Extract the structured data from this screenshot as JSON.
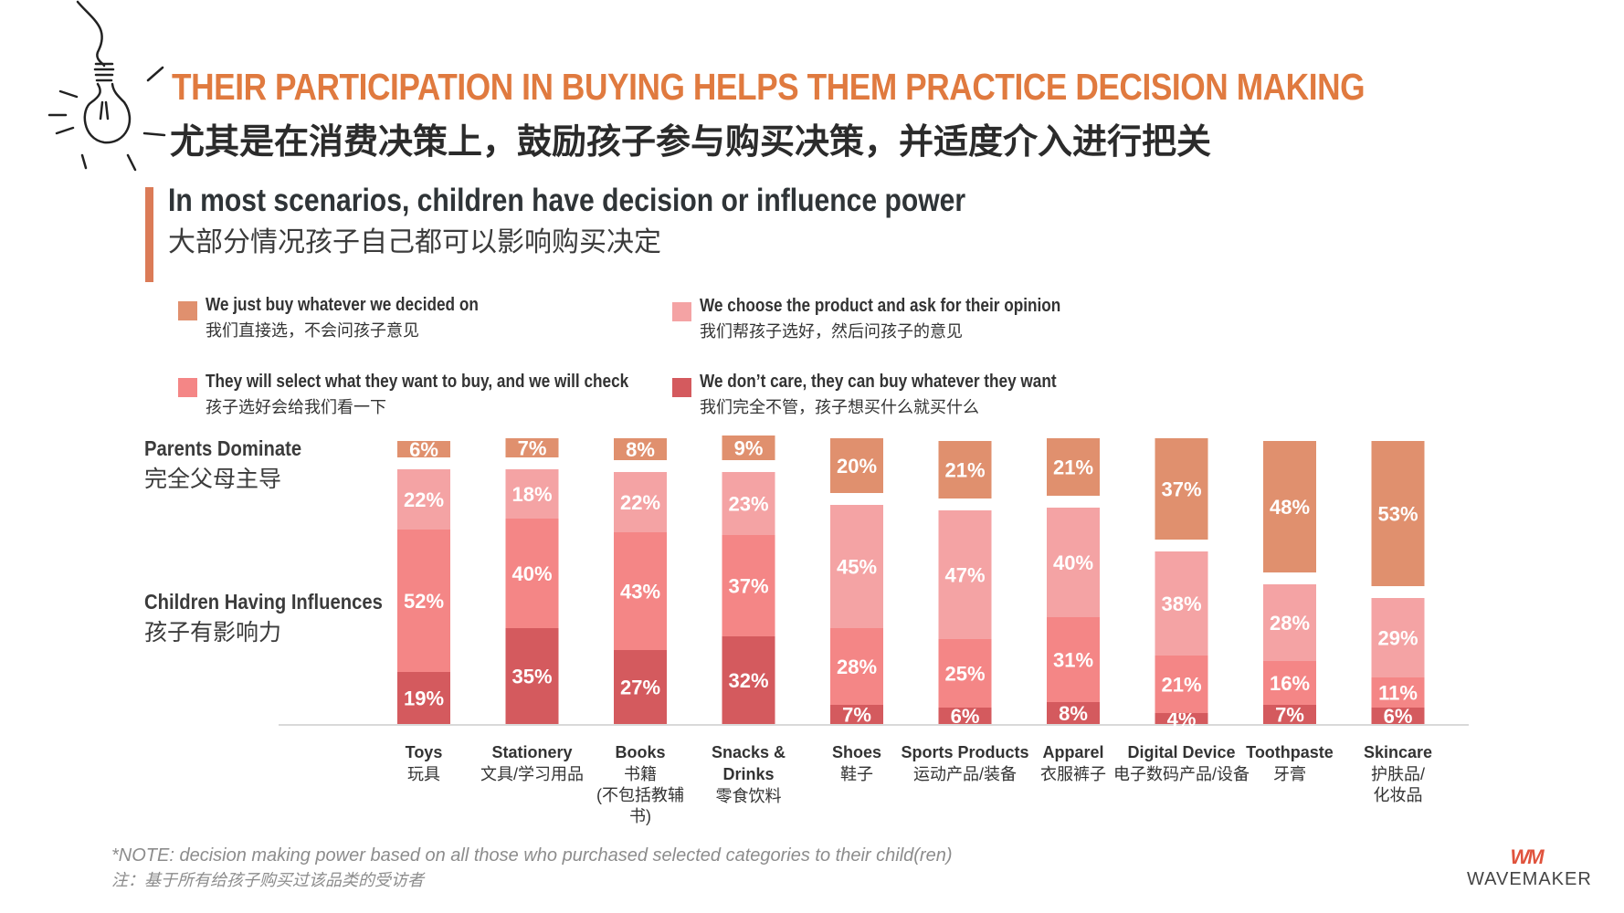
{
  "header": {
    "title_en": "THEIR PARTICIPATION IN BUYING HELPS THEM PRACTICE DECISION MAKING",
    "title_zh": "尤其是在消费决策上，鼓励孩子参与购买决策，并适度介入进行把关"
  },
  "subheader": {
    "en": "In most scenarios, children have decision or influence power",
    "zh": "大部分情况孩子自己都可以影响购买决定"
  },
  "side_labels": {
    "parents_en": "Parents Dominate",
    "parents_zh": "完全父母主导",
    "children_en": "Children Having Influences",
    "children_zh": "孩子有影响力"
  },
  "chart_data": {
    "type": "bar",
    "stacked": true,
    "categories": [
      {
        "en": "Toys",
        "zh": [
          "玩具"
        ]
      },
      {
        "en": "Stationery",
        "zh": [
          "文具/学习用品"
        ]
      },
      {
        "en": "Books",
        "zh": [
          "书籍",
          "(不包括教辅",
          "书)"
        ]
      },
      {
        "en": "Snacks & Drinks",
        "en_lines": [
          "Snacks &",
          "Drinks"
        ],
        "zh": [
          "零食饮料"
        ]
      },
      {
        "en": "Shoes",
        "zh": [
          "鞋子"
        ]
      },
      {
        "en": "Sports Products",
        "zh": [
          "运动产品/装备"
        ]
      },
      {
        "en": "Apparel",
        "zh": [
          "衣服裤子"
        ]
      },
      {
        "en": "Digital Device",
        "zh": [
          "电子数码产品/设备"
        ]
      },
      {
        "en": "Toothpaste",
        "zh": [
          "牙膏"
        ]
      },
      {
        "en": "Skincare",
        "zh": [
          "护肤品/",
          "化妆品"
        ]
      }
    ],
    "series": [
      {
        "name": "We don’t care, they can buy whatever they want",
        "name_zh": "我们完全不管，孩子想买什么就买什么",
        "color": "#d45a5e",
        "values": [
          19,
          35,
          27,
          32,
          7,
          6,
          8,
          4,
          7,
          6
        ]
      },
      {
        "name": "They will select what they want to buy, and we will check",
        "name_zh": "孩子选好会给我们看一下",
        "color": "#f48686",
        "values": [
          52,
          40,
          43,
          37,
          28,
          25,
          31,
          21,
          16,
          11
        ]
      },
      {
        "name": "We choose the product and ask for their opinion",
        "name_zh": "我们帮孩子选好，然后问孩子的意见",
        "color": "#f4a3a4",
        "values": [
          22,
          18,
          22,
          23,
          45,
          47,
          40,
          38,
          28,
          29
        ]
      },
      {
        "name": "We just buy whatever we decided on",
        "name_zh": "我们直接选，不会问孩子意见",
        "color": "#e0906e",
        "values": [
          6,
          7,
          8,
          9,
          20,
          21,
          21,
          37,
          48,
          53
        ]
      }
    ],
    "value_suffix": "%"
  },
  "legend_order": [
    3,
    2,
    1,
    0
  ],
  "note": {
    "en": "*NOTE: decision making power based on all those who purchased selected categories to their child(ren)",
    "zh": "注：基于所有给孩子购买过该品类的受访者"
  },
  "logo": {
    "mark": "WM",
    "text": "WAVEMAKER"
  }
}
